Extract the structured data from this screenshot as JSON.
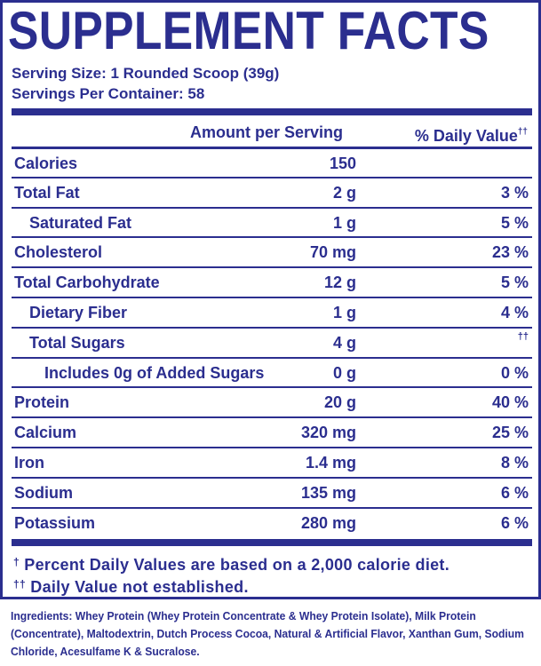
{
  "title": "SUPPLEMENT FACTS",
  "serving_size": "Serving Size: 1 Rounded Scoop (39g)",
  "servings_per_container": "Servings Per Container: 58",
  "header": {
    "amount": "Amount per Serving",
    "dv": "% Daily Value",
    "dv_mark": "††"
  },
  "rows": [
    {
      "name": "Calories",
      "amount": "150",
      "dv": ""
    },
    {
      "name": "Total Fat",
      "amount": "2 g",
      "dv": "3 %"
    },
    {
      "name": "Saturated Fat",
      "amount": "1 g",
      "dv": "5 %"
    },
    {
      "name": "Cholesterol",
      "amount": "70 mg",
      "dv": "23 %"
    },
    {
      "name": "Total Carbohydrate",
      "amount": "12 g",
      "dv": "5 %"
    },
    {
      "name": "Dietary Fiber",
      "amount": "1 g",
      "dv": "4 %"
    },
    {
      "name": "Total Sugars",
      "amount": "4 g",
      "dv": "††"
    },
    {
      "name": "Includes 0g of Added Sugars",
      "amount": "0 g",
      "dv": "0 %"
    },
    {
      "name": "Protein",
      "amount": "20 g",
      "dv": "40 %"
    },
    {
      "name": "Calcium",
      "amount": "320 mg",
      "dv": "25 %"
    },
    {
      "name": "Iron",
      "amount": "1.4 mg",
      "dv": "8 %"
    },
    {
      "name": "Sodium",
      "amount": "135 mg",
      "dv": "6 %"
    },
    {
      "name": "Potassium",
      "amount": "280 mg",
      "dv": "6 %"
    }
  ],
  "footnotes": {
    "mark1": "†",
    "text1": "Percent Daily Values are based on a 2,000 calorie diet.",
    "mark2": "††",
    "text2": "Daily Value not established."
  },
  "ingredients": {
    "label": "Ingredients:",
    "text": "Whey Protein (Whey Protein Concentrate & Whey Protein Isolate), Milk Protein (Concentrate), Maltodextrin, Dutch Process Cocoa, Natural & Artificial Flavor, Xanthan Gum, Sodium Chloride, Acesulfame K & Sucralose."
  },
  "colors": {
    "ink": "#2b2e8f",
    "background": "#ffffff"
  }
}
